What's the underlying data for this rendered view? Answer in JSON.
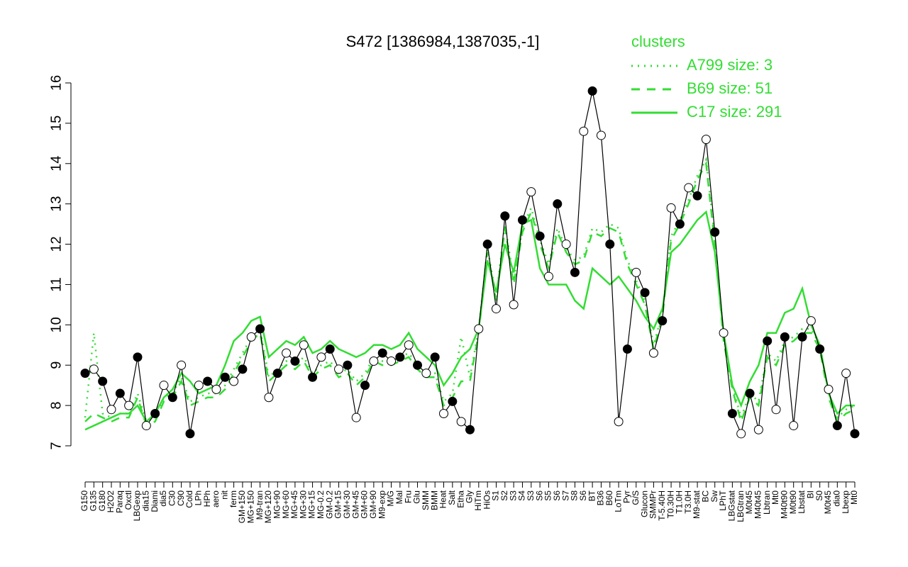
{
  "chart_data": {
    "type": "line",
    "title": "S472 [1386984,1387035,-1]",
    "legend_title": "clusters",
    "categories": [
      "G150",
      "G135",
      "G180",
      "H2O2",
      "Paraq",
      "Oxctl",
      "LBGexp",
      "dia15",
      "Diami",
      "dia5",
      "C30",
      "C90",
      "Cold",
      "LPh",
      "HPh",
      "aero",
      "nit",
      "ferm",
      "GM+150",
      "MG+150",
      "M9-tran",
      "MG+120",
      "MG+90",
      "MG+60",
      "MG+45",
      "MG+30",
      "MG+15",
      "MG-0.2",
      "GM-0.2",
      "GM+15",
      "GM+30",
      "GM+45",
      "GM+60",
      "GM+90",
      "M9-exp",
      "M/G",
      "Mal",
      "Fru",
      "Glu",
      "SMM",
      "BMM",
      "Heat",
      "Salt",
      "Etha",
      "Gly",
      "HiTm",
      "HiOs",
      "S1",
      "S2",
      "S3",
      "S4",
      "S3",
      "S6",
      "S5",
      "S6",
      "S7",
      "S8",
      "S6",
      "BT",
      "B36",
      "B60",
      "LoTm",
      "Pyr",
      "G/S",
      "Glucon",
      "SMMPr",
      "T-5.40H",
      "T0.30H",
      "T1.0H",
      "T3.0H",
      "M9-stat",
      "BC",
      "Sw",
      "LPhT",
      "LBGstat",
      "LBGtran",
      "M0t45",
      "M40t45",
      "Lbtran",
      "Mt0",
      "M40t90",
      "M0t90",
      "Lbstat",
      "BI",
      "S0",
      "M0t45",
      "dia0",
      "Lbexp",
      "Mt0"
    ],
    "values": [
      8.8,
      8.9,
      8.6,
      7.9,
      8.3,
      8.0,
      9.2,
      7.5,
      7.8,
      8.5,
      8.2,
      9.0,
      7.3,
      8.5,
      8.6,
      8.4,
      8.7,
      8.6,
      8.9,
      9.7,
      9.9,
      8.2,
      8.8,
      9.3,
      9.1,
      9.5,
      8.7,
      9.2,
      9.4,
      8.9,
      9.0,
      7.7,
      8.5,
      9.1,
      9.3,
      9.1,
      9.2,
      9.5,
      9.0,
      8.8,
      9.2,
      7.8,
      8.1,
      7.6,
      7.4,
      9.9,
      12.0,
      10.4,
      12.7,
      10.5,
      12.6,
      13.3,
      12.2,
      11.2,
      13.0,
      12.0,
      11.3,
      14.8,
      15.8,
      14.7,
      12.0,
      7.6,
      9.4,
      11.3,
      10.8,
      9.3,
      10.1,
      12.9,
      12.5,
      13.4,
      13.2,
      14.6,
      12.3,
      9.8,
      7.8,
      7.3,
      8.3,
      7.4,
      9.6,
      7.9,
      9.7,
      7.5,
      9.7,
      10.1,
      9.4,
      8.4,
      7.5,
      8.8,
      7.3
    ],
    "color": "#000000",
    "series": [
      {
        "name": "A799 size: 3",
        "color": "#33dd33",
        "dash": "dotted",
        "values": [
          7.7,
          9.8,
          7.8,
          7.7,
          7.8,
          7.8,
          8.3,
          7.6,
          7.7,
          8.2,
          8.3,
          8.7,
          8.1,
          8.2,
          8.3,
          8.3,
          8.5,
          8.9,
          9.3,
          9.7,
          9.9,
          8.7,
          8.9,
          9.1,
          9.0,
          9.2,
          8.8,
          9.0,
          9.1,
          8.8,
          8.9,
          8.6,
          8.8,
          9.2,
          9.1,
          9.1,
          9.2,
          9.3,
          9.0,
          8.8,
          8.8,
          8.1,
          8.3,
          9.7,
          8.7,
          9.9,
          11.9,
          10.7,
          12.5,
          11.1,
          12.4,
          12.9,
          12.1,
          11.5,
          12.4,
          11.9,
          11.6,
          11.7,
          12.4,
          12.3,
          12.5,
          12.4,
          11.6,
          11.1,
          10.6,
          9.5,
          10.3,
          12.2,
          12.6,
          13.1,
          13.7,
          14.1,
          12.1,
          9.7,
          8.5,
          7.7,
          8.3,
          8.1,
          9.3,
          9.1,
          9.6,
          9.7,
          9.9,
          9.9,
          9.5,
          8.3,
          7.7,
          7.9,
          8.0
        ]
      },
      {
        "name": "B69 size: 51",
        "color": "#33dd33",
        "dash": "dashed",
        "values": [
          7.6,
          7.8,
          7.7,
          7.6,
          7.7,
          7.7,
          8.2,
          7.5,
          7.6,
          8.1,
          8.2,
          8.6,
          8.0,
          8.1,
          8.2,
          8.2,
          8.4,
          8.8,
          9.2,
          9.6,
          9.8,
          8.6,
          8.8,
          9.0,
          8.9,
          9.1,
          8.7,
          8.9,
          9.0,
          8.7,
          8.8,
          8.5,
          8.7,
          9.1,
          9.0,
          9.0,
          9.1,
          9.2,
          8.9,
          8.7,
          8.7,
          8.0,
          8.2,
          8.6,
          8.6,
          9.8,
          11.8,
          10.6,
          12.4,
          11.0,
          12.3,
          12.8,
          12.0,
          11.4,
          12.3,
          11.8,
          11.5,
          11.6,
          12.3,
          12.2,
          12.4,
          12.3,
          11.5,
          11.0,
          10.5,
          9.4,
          10.2,
          12.1,
          12.5,
          13.0,
          13.6,
          14.0,
          12.0,
          9.6,
          8.4,
          7.6,
          8.2,
          8.0,
          9.2,
          9.0,
          9.5,
          9.6,
          9.8,
          9.8,
          9.4,
          8.2,
          7.6,
          7.8,
          7.9
        ]
      },
      {
        "name": "C17 size: 291",
        "color": "#33dd33",
        "dash": "solid",
        "values": [
          7.4,
          7.5,
          7.6,
          7.7,
          7.8,
          7.8,
          8.0,
          7.6,
          7.8,
          8.2,
          8.4,
          8.8,
          8.6,
          8.3,
          8.4,
          8.5,
          9.0,
          9.6,
          9.8,
          10.1,
          10.2,
          9.2,
          9.4,
          9.6,
          9.5,
          9.7,
          9.3,
          9.4,
          9.6,
          9.4,
          9.3,
          9.2,
          9.3,
          9.5,
          9.5,
          9.4,
          9.5,
          9.8,
          9.4,
          9.2,
          9.0,
          8.5,
          8.8,
          9.2,
          9.4,
          9.9,
          11.6,
          10.8,
          12.0,
          11.3,
          12.5,
          12.6,
          11.4,
          11.0,
          11.0,
          11.0,
          10.6,
          10.4,
          11.4,
          11.2,
          11.0,
          11.2,
          10.9,
          10.6,
          10.2,
          9.9,
          10.4,
          11.8,
          12.0,
          12.3,
          12.6,
          12.8,
          11.8,
          9.8,
          8.5,
          8.0,
          8.6,
          9.0,
          9.8,
          9.8,
          10.3,
          10.4,
          10.9,
          10.0,
          9.5,
          8.3,
          7.8,
          8.0,
          8.0
        ]
      }
    ],
    "ylim": [
      7,
      16
    ],
    "yticks": [
      7,
      8,
      9,
      10,
      11,
      12,
      13,
      14,
      15,
      16
    ]
  }
}
